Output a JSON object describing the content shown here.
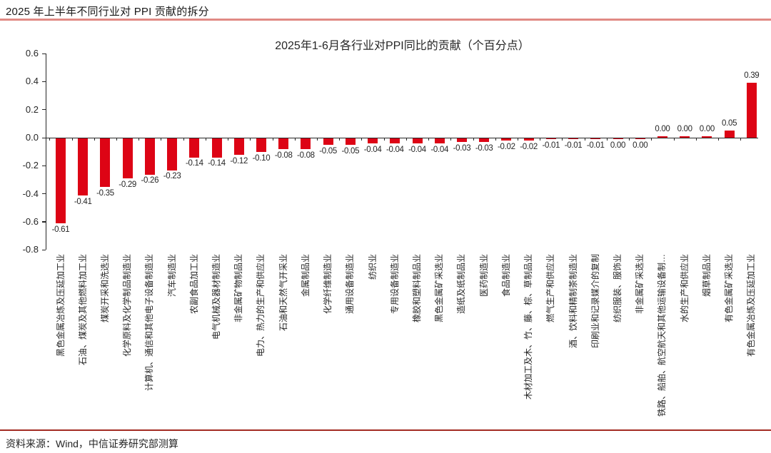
{
  "page": {
    "header_title": "2025 年上半年不同行业对 PPI 贡献的拆分",
    "source_note": "资料来源：Wind，中信证券研究部测算"
  },
  "chart_data": {
    "type": "bar",
    "title": "2025年1-6月各行业对PPI同比的贡献（个百分点）",
    "ylabel": "",
    "xlabel": "",
    "ylim": [
      -0.8,
      0.6
    ],
    "yticks": [
      "0.6",
      "0.4",
      "0.2",
      "0.0",
      "-0.2",
      "-0.4",
      "-0.6",
      "-0.8"
    ],
    "grid": false,
    "legend_position": "none",
    "bar_color": "#dd0415",
    "categories": [
      "黑色金属冶炼及压延加工业",
      "石油、煤炭及其他燃料加工业",
      "煤炭开采和洗选业",
      "化学原料及化学制品制造业",
      "计算机、通信和其他电子设备制造业",
      "汽车制造业",
      "农副食品加工业",
      "电气机械及器材制造业",
      "非金属矿物制品业",
      "电力、热力的生产和供应业",
      "石油和天然气开采业",
      "金属制品业",
      "化学纤维制造业",
      "通用设备制造业",
      "纺织业",
      "专用设备制造业",
      "橡胶和塑料制品业",
      "黑色金属矿采选业",
      "造纸及纸制品业",
      "医药制造业",
      "食品制造业",
      "木材加工及木、竹、藤、棕、草制品业",
      "燃气生产和供应业",
      "酒、饮料和精制茶制造业",
      "印刷业和记录媒介的复制",
      "纺织服装、服饰业",
      "非金属矿采选业",
      "铁路、船舶、航空航天和其他运输设备制…",
      "水的生产和供应业",
      "烟草制品业",
      "有色金属矿采选业",
      "有色金属冶炼及压延加工业"
    ],
    "values": [
      -0.61,
      -0.41,
      -0.35,
      -0.29,
      -0.26,
      -0.23,
      -0.14,
      -0.14,
      -0.12,
      -0.1,
      -0.08,
      -0.08,
      -0.05,
      -0.05,
      -0.04,
      -0.04,
      -0.04,
      -0.04,
      -0.03,
      -0.03,
      -0.02,
      -0.02,
      -0.01,
      -0.01,
      -0.01,
      0.0,
      0.0,
      0.0,
      0.0,
      0.0,
      0.05,
      0.39
    ],
    "value_labels": [
      "-0.61",
      "-0.41",
      "-0.35",
      "-0.29",
      "-0.26",
      "-0.23",
      "-0.14",
      "-0.14",
      "-0.12",
      "-0.10",
      "-0.08",
      "-0.08",
      "-0.05",
      "-0.05",
      "-0.04",
      "-0.04",
      "-0.04",
      "-0.04",
      "-0.03",
      "-0.03",
      "-0.02",
      "-0.02",
      "-0.01",
      "-0.01",
      "-0.01",
      "0.00",
      "0.00",
      "0.00",
      "0.00",
      "0.00",
      "0.05",
      "0.39"
    ],
    "zero_render_directions": [
      -1,
      -1,
      1,
      1,
      1
    ]
  }
}
